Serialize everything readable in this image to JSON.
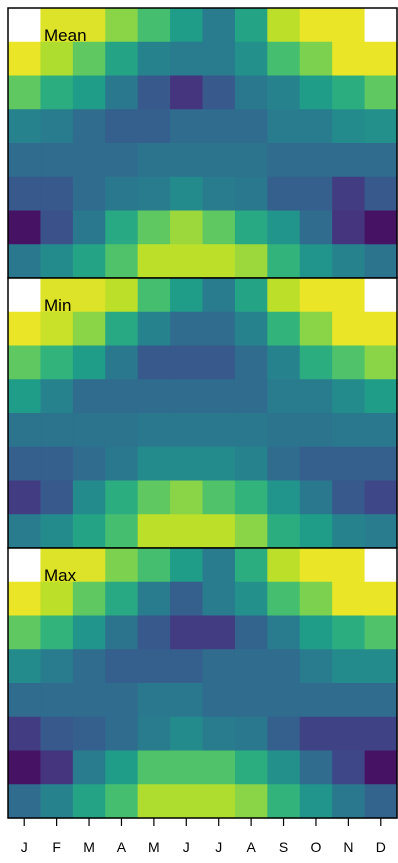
{
  "chart_data": {
    "type": "heatmap",
    "x_labels": [
      "J",
      "F",
      "M",
      "A",
      "M",
      "J",
      "J",
      "A",
      "S",
      "O",
      "N",
      "D"
    ],
    "row_count": 8,
    "palette": "viridis",
    "value_scale": [
      0,
      1
    ],
    "missing_color": "#ffffff",
    "panels": [
      {
        "label": "Mean",
        "values": [
          [
            null,
            0.95,
            0.95,
            0.82,
            0.7,
            0.55,
            0.42,
            0.58,
            0.9,
            0.97,
            0.97,
            null
          ],
          [
            0.97,
            0.88,
            0.75,
            0.58,
            0.45,
            0.42,
            0.42,
            0.5,
            0.7,
            0.8,
            0.97,
            0.97
          ],
          [
            0.75,
            0.62,
            0.55,
            0.4,
            0.28,
            0.15,
            0.28,
            0.4,
            0.45,
            0.55,
            0.62,
            0.75
          ],
          [
            0.45,
            0.42,
            0.35,
            0.3,
            0.3,
            0.35,
            0.35,
            0.35,
            0.42,
            0.42,
            0.48,
            0.5
          ],
          [
            0.35,
            0.35,
            0.35,
            0.35,
            0.38,
            0.38,
            0.38,
            0.38,
            0.35,
            0.35,
            0.35,
            0.35
          ],
          [
            0.28,
            0.28,
            0.35,
            0.4,
            0.42,
            0.48,
            0.42,
            0.4,
            0.3,
            0.3,
            0.18,
            0.28
          ],
          [
            0.05,
            0.25,
            0.4,
            0.6,
            0.75,
            0.85,
            0.75,
            0.6,
            0.52,
            0.35,
            0.15,
            0.05
          ],
          [
            0.4,
            0.48,
            0.58,
            0.72,
            0.9,
            0.9,
            0.9,
            0.85,
            0.65,
            0.52,
            0.45,
            0.38
          ]
        ]
      },
      {
        "label": "Min",
        "values": [
          [
            null,
            0.95,
            0.95,
            0.9,
            0.7,
            0.55,
            0.42,
            0.58,
            0.9,
            0.97,
            0.97,
            null
          ],
          [
            0.97,
            0.92,
            0.82,
            0.6,
            0.45,
            0.35,
            0.35,
            0.45,
            0.65,
            0.82,
            0.97,
            0.97
          ],
          [
            0.75,
            0.65,
            0.55,
            0.4,
            0.28,
            0.28,
            0.28,
            0.35,
            0.45,
            0.62,
            0.72,
            0.82
          ],
          [
            0.55,
            0.45,
            0.35,
            0.35,
            0.35,
            0.35,
            0.35,
            0.35,
            0.42,
            0.42,
            0.48,
            0.55
          ],
          [
            0.38,
            0.38,
            0.38,
            0.38,
            0.4,
            0.4,
            0.4,
            0.4,
            0.38,
            0.38,
            0.4,
            0.4
          ],
          [
            0.3,
            0.3,
            0.35,
            0.4,
            0.48,
            0.48,
            0.48,
            0.45,
            0.35,
            0.3,
            0.3,
            0.3
          ],
          [
            0.18,
            0.28,
            0.48,
            0.62,
            0.75,
            0.82,
            0.72,
            0.65,
            0.52,
            0.4,
            0.28,
            0.22
          ],
          [
            0.42,
            0.48,
            0.58,
            0.7,
            0.9,
            0.9,
            0.9,
            0.82,
            0.62,
            0.55,
            0.45,
            0.42
          ]
        ]
      },
      {
        "label": "Max",
        "values": [
          [
            null,
            0.95,
            0.95,
            0.8,
            0.7,
            0.55,
            0.42,
            0.62,
            0.9,
            0.97,
            0.97,
            null
          ],
          [
            0.97,
            0.9,
            0.75,
            0.6,
            0.42,
            0.3,
            0.42,
            0.5,
            0.7,
            0.8,
            0.97,
            0.97
          ],
          [
            0.75,
            0.65,
            0.52,
            0.38,
            0.28,
            0.18,
            0.18,
            0.32,
            0.42,
            0.55,
            0.62,
            0.72
          ],
          [
            0.48,
            0.42,
            0.35,
            0.3,
            0.3,
            0.3,
            0.35,
            0.35,
            0.35,
            0.42,
            0.48,
            0.48
          ],
          [
            0.35,
            0.35,
            0.35,
            0.35,
            0.4,
            0.4,
            0.35,
            0.35,
            0.35,
            0.35,
            0.35,
            0.35
          ],
          [
            0.18,
            0.28,
            0.3,
            0.35,
            0.42,
            0.48,
            0.42,
            0.4,
            0.3,
            0.2,
            0.2,
            0.2
          ],
          [
            0.05,
            0.15,
            0.42,
            0.55,
            0.72,
            0.72,
            0.72,
            0.62,
            0.5,
            0.35,
            0.22,
            0.05
          ],
          [
            0.35,
            0.45,
            0.58,
            0.7,
            0.88,
            0.88,
            0.88,
            0.82,
            0.65,
            0.52,
            0.4,
            0.32
          ]
        ]
      }
    ]
  }
}
